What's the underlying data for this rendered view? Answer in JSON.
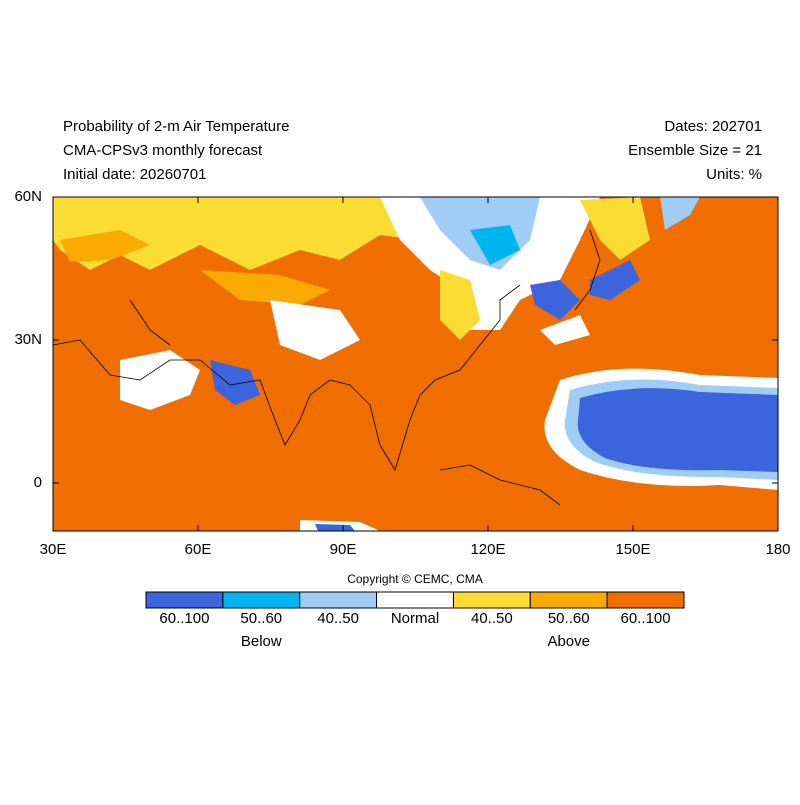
{
  "header": {
    "title": "Probability of 2-m Air Temperature",
    "subtitle": "CMA-CPSv3 monthly forecast",
    "initial_date": "Initial date: 20260701",
    "dates": "Dates: 202701",
    "ensemble_size": "Ensemble Size = 21",
    "units": "Units: %"
  },
  "map": {
    "lat_labels": [
      "60N",
      "30N",
      "0"
    ],
    "lon_labels": [
      "30E",
      "60E",
      "90E",
      "120E",
      "150E",
      "180"
    ]
  },
  "legend": {
    "copyright": "Copyright © CEMC, CMA",
    "bins": [
      {
        "label": "60..100",
        "color": "#3c64dc"
      },
      {
        "label": "50..60",
        "color": "#00b4f0"
      },
      {
        "label": "40..50",
        "color": "#a0cdf5"
      },
      {
        "label": "Normal",
        "color": "#ffffff"
      },
      {
        "label": "40..50",
        "color": "#fadc32"
      },
      {
        "label": "50..60",
        "color": "#faaa00"
      },
      {
        "label": "60..100",
        "color": "#f06e00"
      }
    ],
    "groups": [
      "Below",
      "Above"
    ]
  }
}
